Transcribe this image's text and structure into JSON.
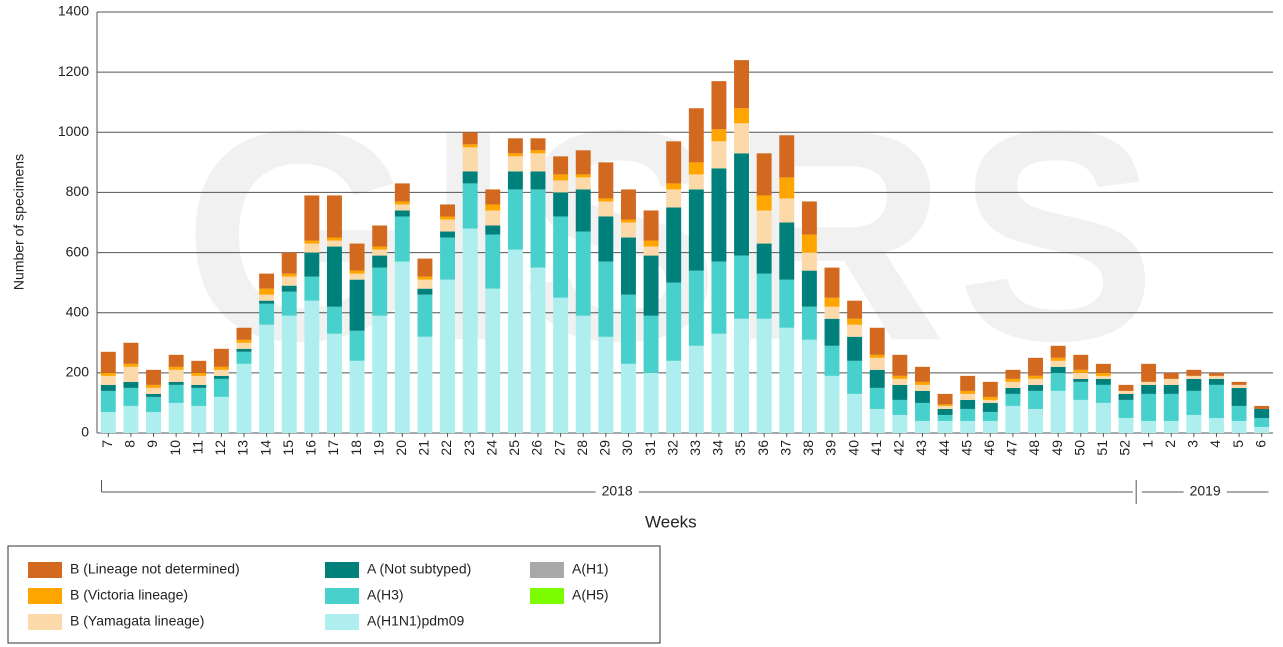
{
  "chart_data": {
    "type": "stacked-bar",
    "watermark": "GISRS",
    "x_label": "Weeks",
    "y_label": "Number of specimens",
    "categories": [
      "7",
      "8",
      "9",
      "10",
      "11",
      "12",
      "13",
      "14",
      "15",
      "16",
      "17",
      "18",
      "19",
      "20",
      "21",
      "22",
      "23",
      "24",
      "25",
      "26",
      "27",
      "28",
      "29",
      "30",
      "31",
      "32",
      "33",
      "34",
      "35",
      "36",
      "37",
      "38",
      "39",
      "40",
      "41",
      "42",
      "43",
      "44",
      "45",
      "46",
      "47",
      "48",
      "49",
      "50",
      "51",
      "52",
      "1",
      "2",
      "3",
      "4",
      "5",
      "6"
    ],
    "x_groups": [
      "2018",
      "2019"
    ],
    "ylim": [
      0,
      1400
    ],
    "yticks": [
      0,
      200,
      400,
      600,
      800,
      1000,
      1200,
      1400
    ],
    "grid": true,
    "series": [
      {
        "name": "B (Lineage not determined)",
        "color": "#d2691e",
        "values": [
          70,
          70,
          50,
          40,
          40,
          60,
          40,
          50,
          70,
          150,
          140,
          90,
          70,
          60,
          60,
          40,
          40,
          50,
          50,
          40,
          60,
          80,
          120,
          100,
          100,
          140,
          180,
          160,
          160,
          140,
          140,
          110,
          100,
          60,
          90,
          70,
          50,
          35,
          50,
          50,
          30,
          60,
          40,
          50,
          30,
          20,
          60,
          20,
          20,
          10,
          10,
          10
        ]
      },
      {
        "name": "B (Victoria lineage)",
        "color": "#ffa500",
        "values": [
          10,
          10,
          10,
          10,
          10,
          10,
          10,
          20,
          10,
          10,
          10,
          10,
          10,
          10,
          10,
          10,
          10,
          20,
          10,
          10,
          20,
          10,
          10,
          10,
          20,
          20,
          40,
          40,
          50,
          50,
          70,
          60,
          30,
          20,
          10,
          10,
          10,
          5,
          10,
          10,
          10,
          10,
          10,
          10,
          10,
          0,
          0,
          0,
          0,
          0,
          0,
          0
        ]
      },
      {
        "name": "B (Yamagata lineage)",
        "color": "#fcd9a8",
        "values": [
          30,
          50,
          20,
          40,
          30,
          20,
          20,
          20,
          30,
          30,
          20,
          20,
          20,
          20,
          30,
          40,
          80,
          50,
          50,
          60,
          40,
          40,
          50,
          50,
          30,
          60,
          50,
          90,
          100,
          110,
          80,
          60,
          40,
          40,
          40,
          20,
          20,
          10,
          20,
          10,
          20,
          20,
          20,
          20,
          10,
          10,
          10,
          20,
          10,
          10,
          10,
          0
        ]
      },
      {
        "name": "A (Not subtyped)",
        "color": "#00807a",
        "values": [
          20,
          20,
          10,
          10,
          10,
          10,
          10,
          10,
          20,
          80,
          200,
          170,
          40,
          20,
          20,
          20,
          40,
          30,
          60,
          60,
          80,
          140,
          150,
          190,
          200,
          250,
          270,
          310,
          340,
          100,
          190,
          120,
          90,
          80,
          60,
          50,
          40,
          20,
          30,
          30,
          20,
          20,
          20,
          10,
          20,
          20,
          30,
          30,
          40,
          20,
          60,
          30
        ]
      },
      {
        "name": "A(H3)",
        "color": "#48d1cc",
        "values": [
          70,
          60,
          50,
          60,
          60,
          60,
          40,
          70,
          80,
          80,
          90,
          100,
          160,
          150,
          140,
          140,
          150,
          180,
          200,
          260,
          270,
          280,
          250,
          230,
          190,
          260,
          250,
          240,
          210,
          150,
          160,
          110,
          100,
          110,
          70,
          50,
          60,
          20,
          40,
          30,
          40,
          60,
          60,
          60,
          60,
          60,
          90,
          90,
          80,
          110,
          50,
          30
        ]
      },
      {
        "name": "A(H1N1)pdm09",
        "color": "#aeeeee",
        "values": [
          70,
          90,
          70,
          100,
          90,
          120,
          230,
          360,
          390,
          440,
          330,
          240,
          390,
          570,
          320,
          510,
          680,
          480,
          610,
          550,
          450,
          390,
          320,
          230,
          200,
          240,
          290,
          330,
          380,
          380,
          350,
          310,
          190,
          130,
          80,
          60,
          40,
          40,
          40,
          40,
          90,
          80,
          140,
          110,
          100,
          50,
          40,
          40,
          60,
          50,
          40,
          20
        ]
      },
      {
        "name": "A(H1)",
        "color": "#a9a9a9",
        "values": [
          0,
          0,
          0,
          0,
          0,
          0,
          0,
          0,
          0,
          0,
          0,
          0,
          0,
          0,
          0,
          0,
          0,
          0,
          0,
          0,
          0,
          0,
          0,
          0,
          0,
          0,
          0,
          0,
          0,
          0,
          0,
          0,
          0,
          0,
          0,
          0,
          0,
          0,
          0,
          0,
          0,
          0,
          0,
          0,
          0,
          0,
          0,
          0,
          0,
          0,
          0,
          0
        ]
      },
      {
        "name": "A(H5)",
        "color": "#7cfc00",
        "values": [
          0,
          0,
          0,
          0,
          0,
          0,
          0,
          0,
          0,
          0,
          0,
          0,
          0,
          0,
          0,
          0,
          0,
          0,
          0,
          0,
          0,
          0,
          0,
          0,
          0,
          0,
          0,
          0,
          0,
          0,
          0,
          0,
          0,
          0,
          0,
          0,
          0,
          0,
          0,
          0,
          0,
          0,
          0,
          0,
          0,
          0,
          0,
          0,
          0,
          0,
          0,
          0
        ]
      }
    ]
  }
}
